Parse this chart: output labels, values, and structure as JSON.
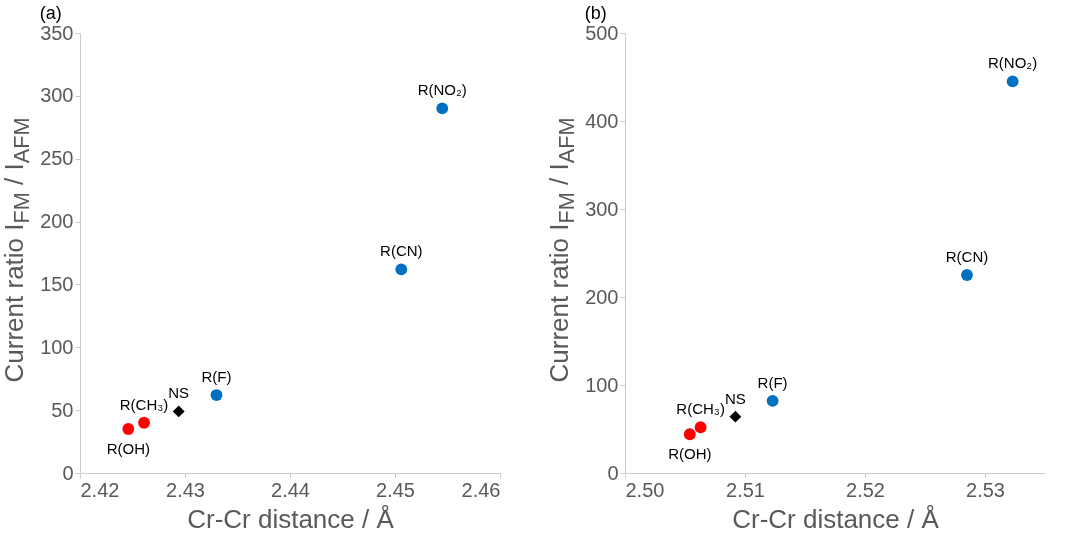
{
  "chart_data": [
    {
      "type": "scatter",
      "title": "(a)",
      "xlabel": "Cr-Cr distance / Å",
      "ylabel": "Current ratio I$_{FM}$ / I$_{AFM}$",
      "xlim": [
        2.42,
        2.46
      ],
      "ylim": [
        0,
        350
      ],
      "xticks": [
        2.42,
        2.43,
        2.44,
        2.45,
        2.46
      ],
      "yticks": [
        0,
        50,
        100,
        150,
        200,
        250,
        300,
        350
      ],
      "series": [
        {
          "color": "#ff0000",
          "marker": "circle",
          "x": [
            2.4246,
            2.4261
          ],
          "values": [
            35,
            40
          ]
        },
        {
          "color": "#000000",
          "marker": "diamond",
          "x": [
            2.4294
          ],
          "values": [
            49
          ]
        },
        {
          "color": "#0070c0",
          "marker": "circle",
          "x": [
            2.433,
            2.4506,
            2.4545
          ],
          "values": [
            62,
            162,
            290
          ]
        }
      ],
      "annotations": [
        {
          "text": "R(OH)",
          "x": 2.4246,
          "y": 35
        },
        {
          "text": "R(CH₃)",
          "x": 2.4261,
          "y": 40
        },
        {
          "text": "NS",
          "x": 2.4294,
          "y": 49
        },
        {
          "text": "R(F)",
          "x": 2.433,
          "y": 62
        },
        {
          "text": "R(CN)",
          "x": 2.4506,
          "y": 162
        },
        {
          "text": "R(NO₂)",
          "x": 2.4545,
          "y": 290
        }
      ]
    },
    {
      "type": "scatter",
      "title": "(b)",
      "xlabel": "Cr-Cr distance / Å",
      "ylabel": "Current ratio I$_{FM}$ / I$_{AFM}$",
      "xlim": [
        2.5,
        2.535
      ],
      "ylim": [
        0,
        500
      ],
      "xticks": [
        {
          "value": 2.5,
          "label": "2.50"
        },
        2.51,
        2.52,
        2.53
      ],
      "yticks": [
        0,
        100,
        200,
        300,
        400,
        500
      ],
      "series": [
        {
          "color": "#ff0000",
          "marker": "circle",
          "x": [
            2.5054,
            2.5063
          ],
          "values": [
            44,
            52
          ]
        },
        {
          "color": "#000000",
          "marker": "diamond",
          "x": [
            2.5092
          ],
          "values": [
            64
          ]
        },
        {
          "color": "#0070c0",
          "marker": "circle",
          "x": [
            2.5123,
            2.5285,
            2.5323
          ],
          "values": [
            82,
            225,
            445
          ]
        }
      ],
      "annotations": [
        {
          "text": "R(OH)",
          "x": 2.5054,
          "y": 44
        },
        {
          "text": "R(CH₃)",
          "x": 2.5063,
          "y": 52
        },
        {
          "text": "NS",
          "x": 2.5092,
          "y": 64
        },
        {
          "text": "R(F)",
          "x": 2.5123,
          "y": 82
        },
        {
          "text": "R(CN)",
          "x": 2.5285,
          "y": 225
        },
        {
          "text": "R(NO₂)",
          "x": 2.5323,
          "y": 445
        }
      ]
    }
  ]
}
